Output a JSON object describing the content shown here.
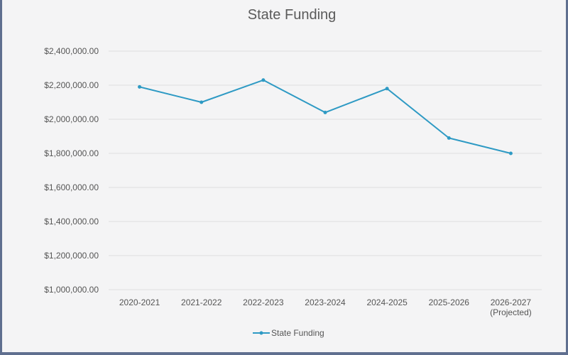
{
  "chart_data": {
    "type": "line",
    "title": "State Funding",
    "xlabel": "",
    "ylabel": "",
    "categories": [
      "2020-2021",
      "2021-2022",
      "2022-2023",
      "2023-2024",
      "2024-2025",
      "2025-2026",
      "2026-2027 (Projected)"
    ],
    "category_lines": [
      [
        "2020-2021"
      ],
      [
        "2021-2022"
      ],
      [
        "2022-2023"
      ],
      [
        "2023-2024"
      ],
      [
        "2024-2025"
      ],
      [
        "2025-2026"
      ],
      [
        "2026-2027",
        "(Projected)"
      ]
    ],
    "y_ticks": [
      "$1,000,000.00",
      "$1,200,000.00",
      "$1,400,000.00",
      "$1,600,000.00",
      "$1,800,000.00",
      "$2,000,000.00",
      "$2,200,000.00",
      "$2,400,000.00"
    ],
    "ylim": [
      1000000,
      2400000
    ],
    "y_tick_step": 200000,
    "grid": true,
    "legend_position": "bottom",
    "series": [
      {
        "name": "State Funding",
        "color": "#2e9ac4",
        "values": [
          2190000,
          2100000,
          2230000,
          2040000,
          2180000,
          1890000,
          1800000
        ]
      }
    ]
  },
  "colors": {
    "frame_border": "#5f6f8f",
    "background": "#f4f4f5",
    "gridline": "#dedede"
  }
}
